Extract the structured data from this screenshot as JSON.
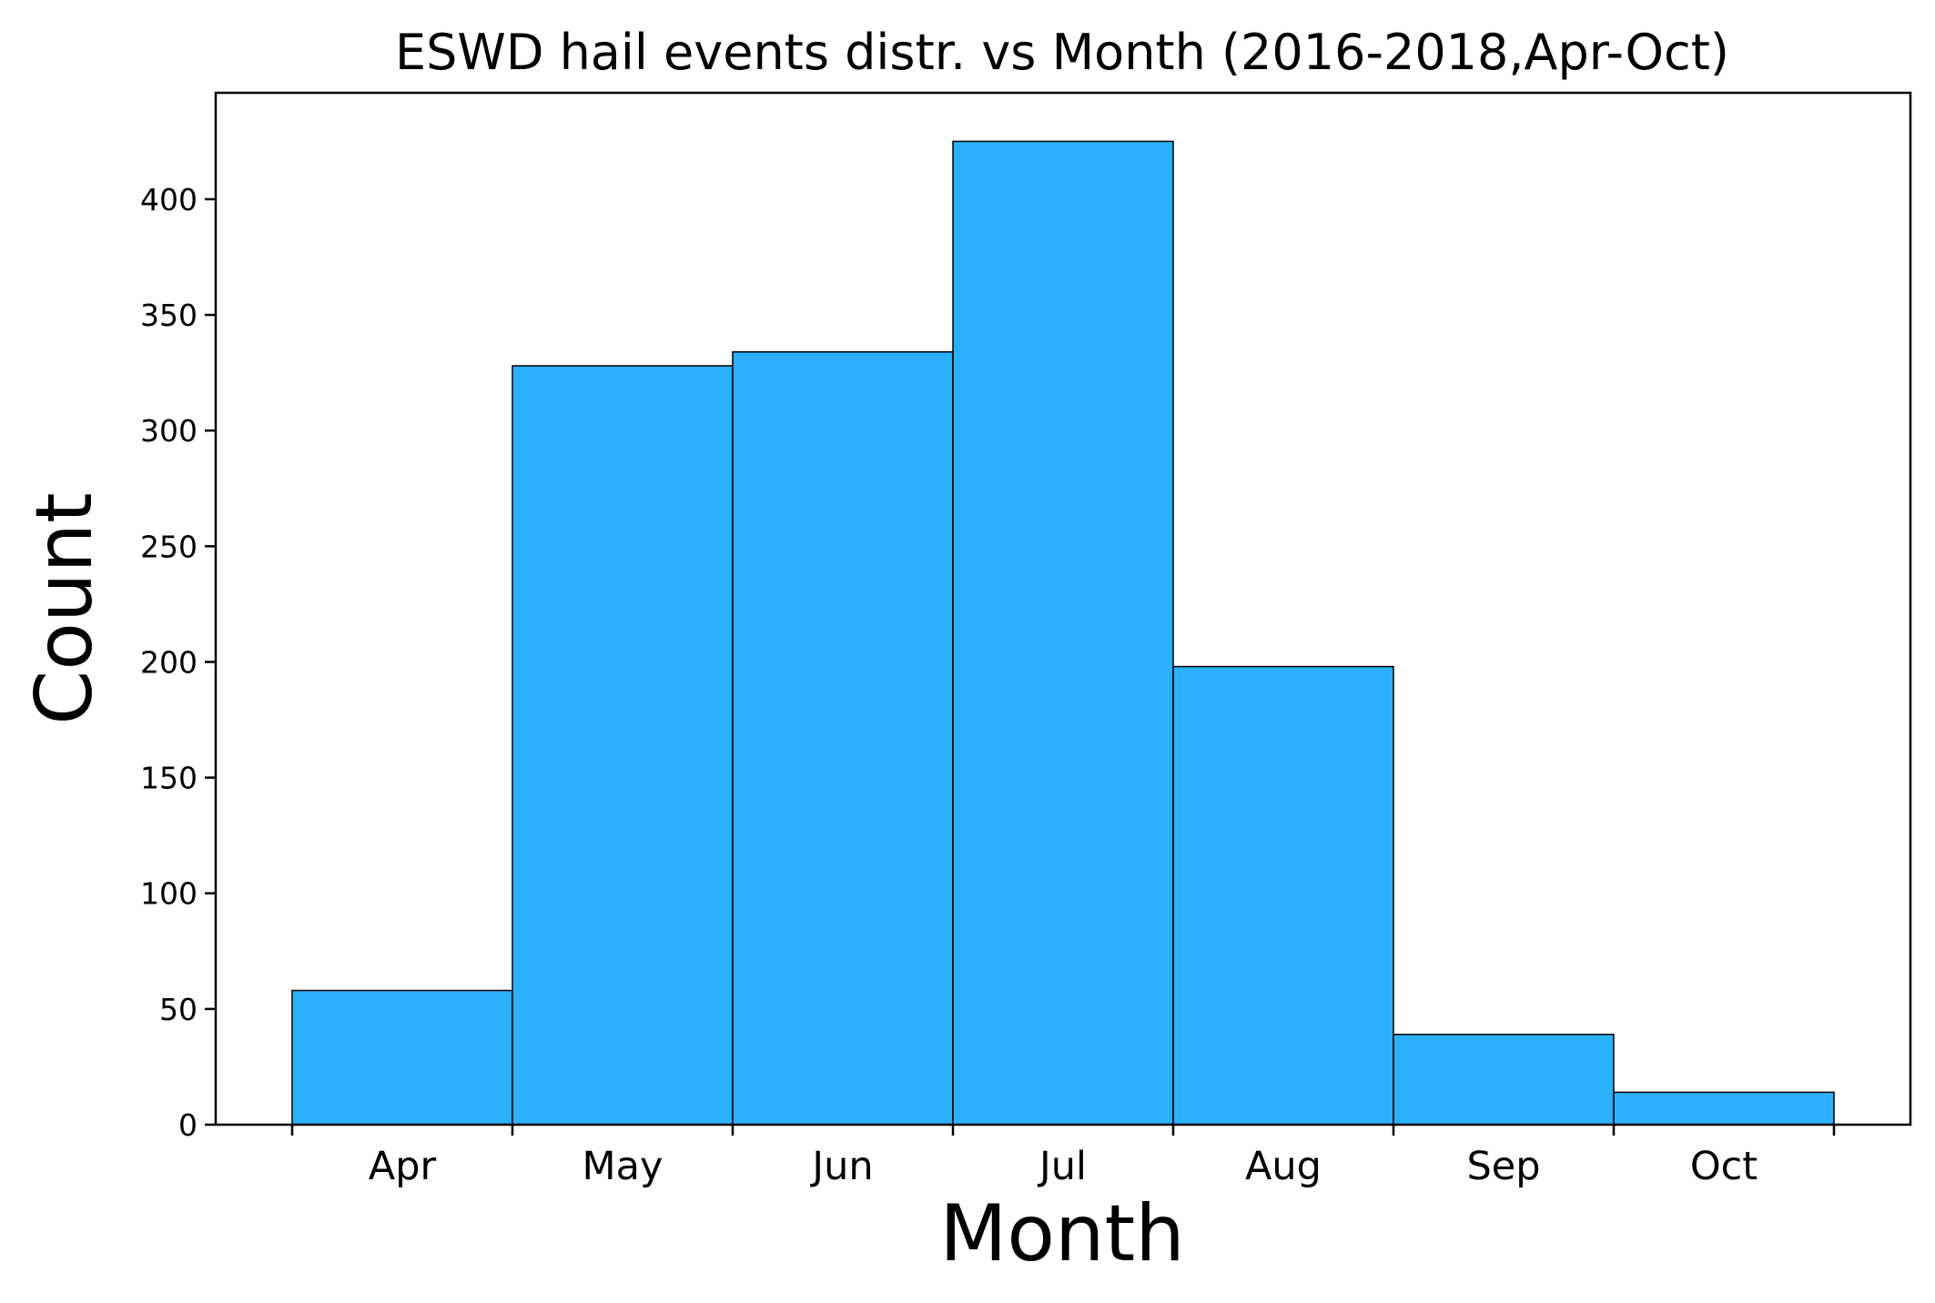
{
  "chart_data": {
    "type": "bar",
    "title": "ESWD hail events distr. vs Month (2016-2018,Apr-Oct)",
    "xlabel": "Month",
    "ylabel": "Count",
    "categories": [
      "Apr",
      "May",
      "Jun",
      "Jul",
      "Aug",
      "Sep",
      "Oct"
    ],
    "values": [
      58,
      328,
      334,
      425,
      198,
      39,
      14
    ],
    "ylim": [
      0,
      446
    ],
    "yticks": [
      0,
      50,
      100,
      150,
      200,
      250,
      300,
      350,
      400
    ],
    "grid": false,
    "bar_color": "#2cb0fe",
    "edge_color": "#000000"
  }
}
